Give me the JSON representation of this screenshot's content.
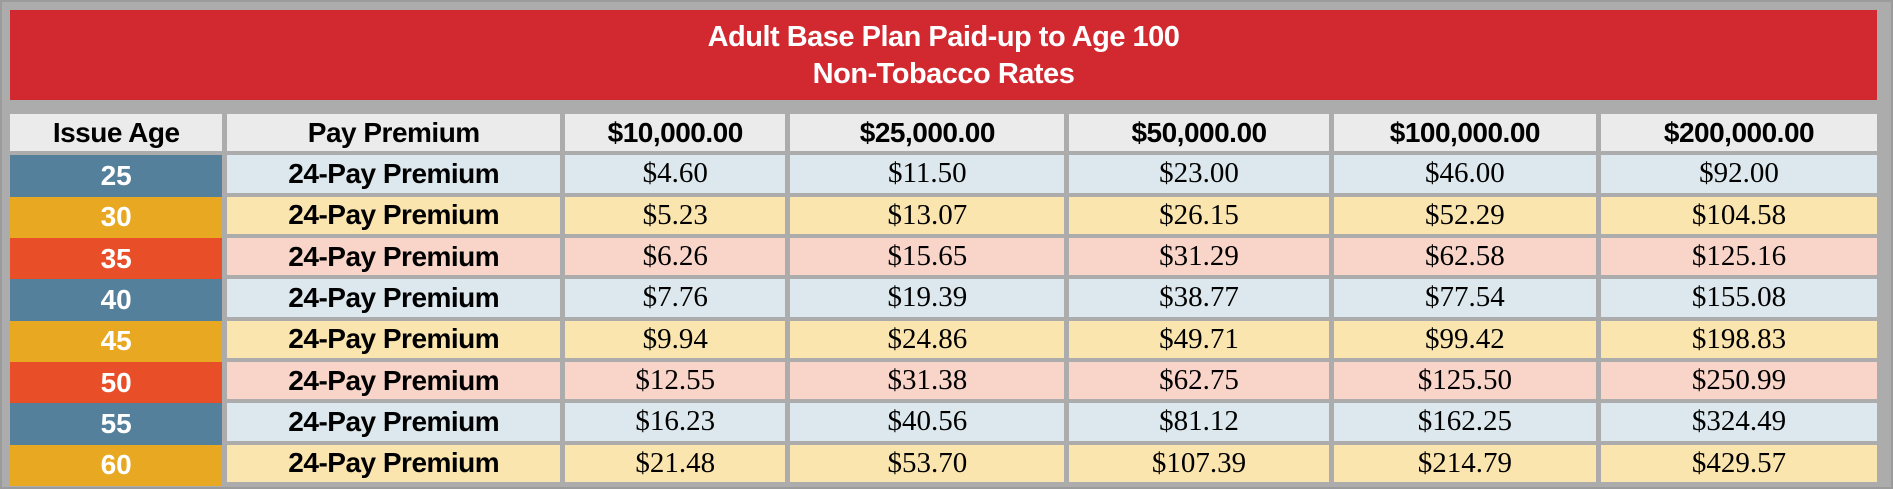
{
  "title": {
    "line1": "Adult Base Plan Paid-up to Age 100",
    "line2": "Non-Tobacco Rates"
  },
  "table": {
    "columns": [
      "Issue Age",
      "Pay Premium",
      "$10,000.00",
      "$25,000.00",
      "$50,000.00",
      "$100,000.00",
      "$200,000.00"
    ],
    "rows": [
      {
        "age": "25",
        "label": "24-Pay Premium",
        "theme": "blue",
        "values": [
          "$4.60",
          "$11.50",
          "$23.00",
          "$46.00",
          "$92.00"
        ]
      },
      {
        "age": "30",
        "label": "24-Pay Premium",
        "theme": "gold",
        "values": [
          "$5.23",
          "$13.07",
          "$26.15",
          "$52.29",
          "$104.58"
        ]
      },
      {
        "age": "35",
        "label": "24-Pay Premium",
        "theme": "red",
        "values": [
          "$6.26",
          "$15.65",
          "$31.29",
          "$62.58",
          "$125.16"
        ]
      },
      {
        "age": "40",
        "label": "24-Pay Premium",
        "theme": "blue",
        "values": [
          "$7.76",
          "$19.39",
          "$38.77",
          "$77.54",
          "$155.08"
        ]
      },
      {
        "age": "45",
        "label": "24-Pay Premium",
        "theme": "gold",
        "values": [
          "$9.94",
          "$24.86",
          "$49.71",
          "$99.42",
          "$198.83"
        ]
      },
      {
        "age": "50",
        "label": "24-Pay Premium",
        "theme": "red",
        "values": [
          "$12.55",
          "$31.38",
          "$62.75",
          "$125.50",
          "$250.99"
        ]
      },
      {
        "age": "55",
        "label": "24-Pay Premium",
        "theme": "blue",
        "values": [
          "$16.23",
          "$40.56",
          "$81.12",
          "$162.25",
          "$324.49"
        ]
      },
      {
        "age": "60",
        "label": "24-Pay Premium",
        "theme": "gold",
        "values": [
          "$21.48",
          "$53.70",
          "$107.39",
          "$214.79",
          "$429.57"
        ]
      }
    ]
  },
  "chart_data": {
    "type": "table",
    "title": "Adult Base Plan Paid-up to Age 100 — Non-Tobacco Rates",
    "columns": [
      "Issue Age",
      "Pay Premium",
      "$10,000.00",
      "$25,000.00",
      "$50,000.00",
      "$100,000.00",
      "$200,000.00"
    ],
    "rows": [
      [
        "25",
        "24-Pay Premium",
        4.6,
        11.5,
        23.0,
        46.0,
        92.0
      ],
      [
        "30",
        "24-Pay Premium",
        5.23,
        13.07,
        26.15,
        52.29,
        104.58
      ],
      [
        "35",
        "24-Pay Premium",
        6.26,
        15.65,
        31.29,
        62.58,
        125.16
      ],
      [
        "40",
        "24-Pay Premium",
        7.76,
        19.39,
        38.77,
        77.54,
        155.08
      ],
      [
        "45",
        "24-Pay Premium",
        9.94,
        24.86,
        49.71,
        99.42,
        198.83
      ],
      [
        "50",
        "24-Pay Premium",
        12.55,
        31.38,
        62.75,
        125.5,
        250.99
      ],
      [
        "55",
        "24-Pay Premium",
        16.23,
        40.56,
        81.12,
        162.25,
        324.49
      ],
      [
        "60",
        "24-Pay Premium",
        21.48,
        53.7,
        107.39,
        214.79,
        429.57
      ]
    ]
  },
  "colors": {
    "red_header": "#D2282F",
    "age_blue": "#54809B",
    "age_gold": "#E9A822",
    "age_red": "#E84E28",
    "row_blue": "#DCE8ED",
    "row_gold": "#FBE5AF",
    "row_red": "#F9D5C9",
    "header_bg": "#EBEBEB",
    "frame_gray": "#ACACAC",
    "frame_edge": "#9B9B9B"
  }
}
